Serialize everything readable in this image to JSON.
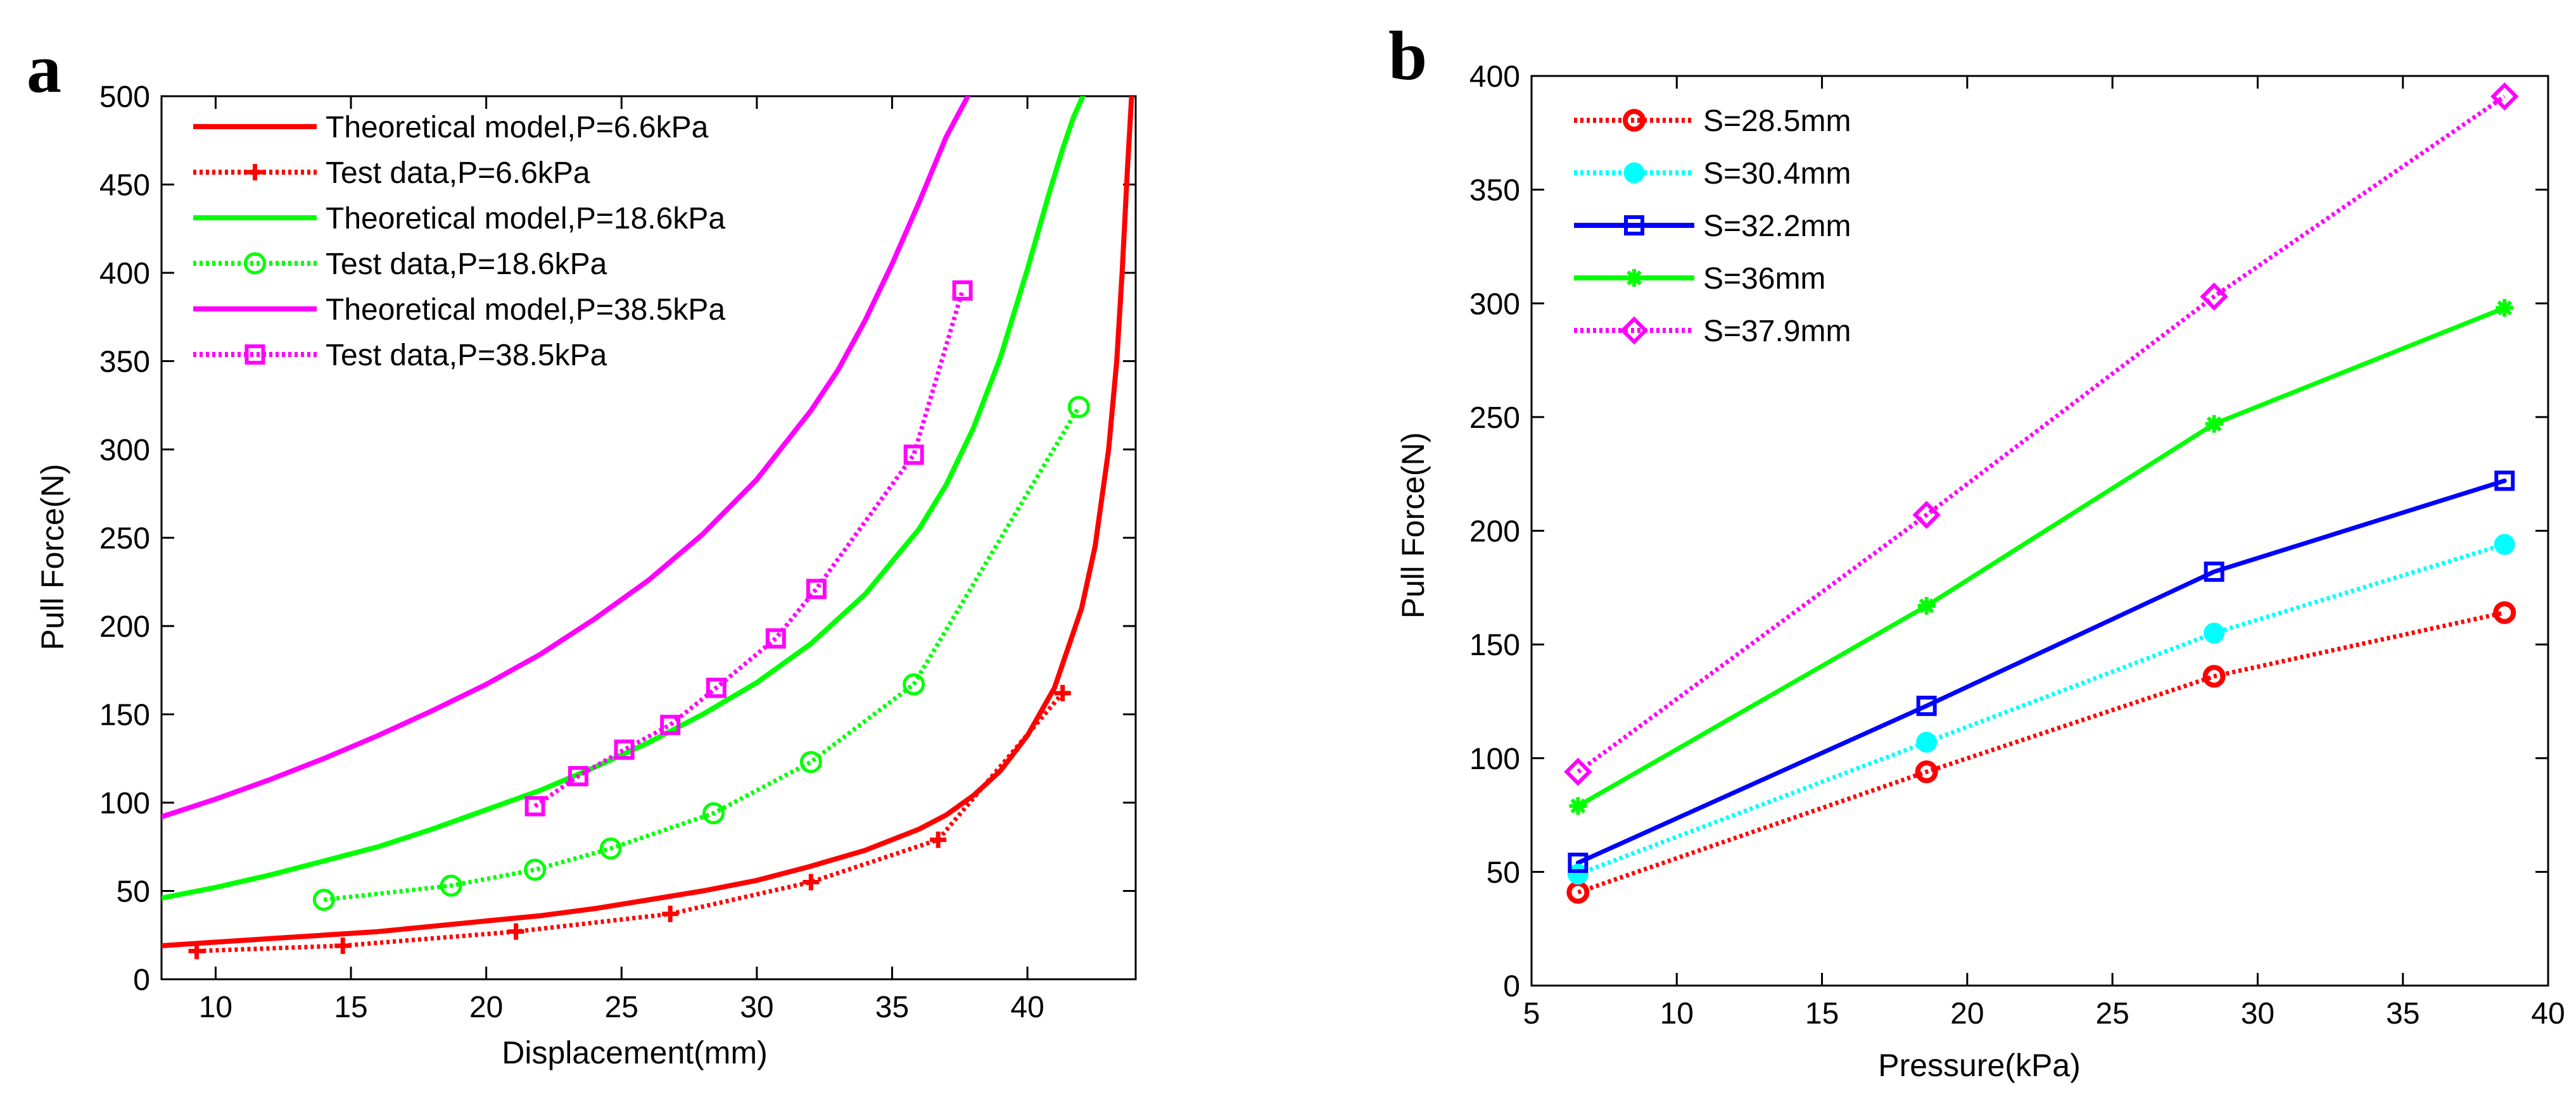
{
  "chart_data": [
    {
      "type": "line",
      "panel_label": "a",
      "title": "",
      "xlabel": "Displacement(mm)",
      "ylabel": "Pull Force(N)",
      "xlim": [
        8,
        44
      ],
      "ylim": [
        0,
        500
      ],
      "xticks": [
        10,
        15,
        20,
        25,
        30,
        35,
        40
      ],
      "yticks": [
        0,
        50,
        100,
        150,
        200,
        250,
        300,
        350,
        400,
        450,
        500
      ],
      "grid": false,
      "legend_position": "top-left",
      "series": [
        {
          "name": "Theoretical model,P=6.6kPa",
          "color": "#ff0000",
          "style": "solid",
          "marker": "none",
          "x": [
            8,
            10,
            12,
            14,
            16,
            18,
            20,
            22,
            24,
            26,
            28,
            30,
            32,
            34,
            36,
            37,
            38,
            39,
            40,
            41,
            42,
            42.5,
            43,
            43.3,
            43.5,
            43.7,
            43.85
          ],
          "y": [
            19,
            21,
            23,
            25,
            27,
            30,
            33,
            36,
            40,
            45,
            50,
            56,
            64,
            73,
            85,
            93,
            104,
            118,
            138,
            165,
            210,
            245,
            300,
            350,
            400,
            460,
            500
          ]
        },
        {
          "name": "Test data,P=6.6kPa",
          "color": "#ff0000",
          "style": "dotted",
          "marker": "plus",
          "x": [
            9.3,
            14.7,
            21.1,
            26.8,
            32.0,
            36.7,
            41.3
          ],
          "y": [
            16,
            19,
            27,
            37,
            55,
            79,
            162
          ]
        },
        {
          "name": "Theoretical model,P=18.6kPa",
          "color": "#00ff00",
          "style": "solid",
          "marker": "none",
          "x": [
            8,
            10,
            12,
            14,
            16,
            18,
            20,
            22,
            24,
            26,
            28,
            30,
            32,
            34,
            36,
            37,
            38,
            39,
            40,
            40.8,
            41.3,
            41.7,
            42.05
          ],
          "y": [
            46,
            52,
            59,
            67,
            75,
            85,
            96,
            107,
            120,
            134,
            150,
            168,
            190,
            218,
            255,
            280,
            312,
            352,
            402,
            445,
            470,
            488,
            500
          ]
        },
        {
          "name": "Test data,P=18.6kPa",
          "color": "#00ff00",
          "style": "dotted",
          "marker": "circle",
          "x": [
            14.0,
            18.7,
            21.8,
            24.6,
            28.4,
            32.0,
            35.8,
            41.9
          ],
          "y": [
            45,
            53,
            62,
            74,
            94,
            123,
            167,
            324
          ]
        },
        {
          "name": "Theoretical model,P=38.5kPa",
          "color": "#ff00ff",
          "style": "solid",
          "marker": "none",
          "x": [
            8,
            10,
            12,
            14,
            16,
            18,
            20,
            22,
            24,
            26,
            28,
            30,
            32,
            33,
            34,
            35,
            36,
            37,
            37.8
          ],
          "y": [
            92,
            102,
            113,
            125,
            138,
            152,
            167,
            184,
            204,
            226,
            252,
            283,
            322,
            345,
            373,
            405,
            440,
            477,
            500
          ]
        },
        {
          "name": "Test data,P=38.5kPa",
          "color": "#ff00ff",
          "style": "dotted",
          "marker": "square",
          "x": [
            21.8,
            23.4,
            25.1,
            26.8,
            28.5,
            30.7,
            32.2,
            35.8,
            37.6
          ],
          "y": [
            98,
            115,
            130,
            144,
            165,
            193,
            221,
            297,
            390
          ]
        }
      ]
    },
    {
      "type": "line",
      "panel_label": "b",
      "title": "",
      "xlabel": "Pressure(kPa)",
      "ylabel": "Pull Force(N)",
      "xlim": [
        5,
        40
      ],
      "ylim": [
        0,
        400
      ],
      "xticks": [
        5,
        10,
        15,
        20,
        25,
        30,
        35,
        40
      ],
      "yticks": [
        0,
        50,
        100,
        150,
        200,
        250,
        300,
        350,
        400
      ],
      "grid": false,
      "legend_position": "top-left",
      "x": [
        6.6,
        18.6,
        28.5,
        38.5
      ],
      "series": [
        {
          "name": "S=28.5mm",
          "color": "#ff0000",
          "style": "dotted",
          "marker": "circle-thick",
          "values": [
            41,
            94,
            136,
            164
          ]
        },
        {
          "name": "S=30.4mm",
          "color": "#00ffff",
          "style": "dotted",
          "marker": "circle-filled",
          "values": [
            49,
            107,
            155,
            194
          ]
        },
        {
          "name": "S=32.2mm",
          "color": "#0000ff",
          "style": "solid",
          "marker": "square",
          "values": [
            54,
            123,
            182,
            222
          ]
        },
        {
          "name": "S=36mm",
          "color": "#00ff00",
          "style": "solid",
          "marker": "star",
          "values": [
            79,
            167,
            247,
            298
          ]
        },
        {
          "name": "S=37.9mm",
          "color": "#ff00ff",
          "style": "dotted",
          "marker": "diamond",
          "values": [
            94,
            207,
            303,
            391
          ]
        }
      ]
    }
  ]
}
